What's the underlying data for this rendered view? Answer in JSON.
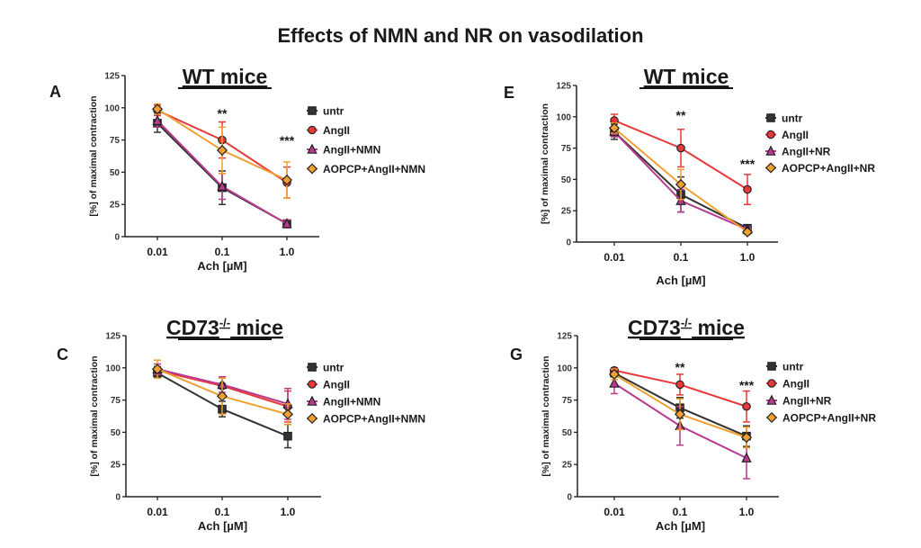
{
  "title": "Effects of NMN and NR on vasodilation",
  "colors": {
    "untr": "#333333",
    "AngII": "#e8393a",
    "NMN": "#b83b8f",
    "AOPCP": "#f0a030"
  },
  "chart_data": [
    {
      "type": "line",
      "panel": "A",
      "title": "WT mice",
      "title_superscript": "",
      "xlabel": "Ach [µM]",
      "ylabel": "[%] of maximal contraction",
      "categories": [
        "0.01",
        "0.1",
        "1.0"
      ],
      "ylim": [
        0,
        125
      ],
      "yticks": [
        0,
        25,
        50,
        75,
        100,
        125
      ],
      "legend": "right",
      "significance": [
        "",
        "**",
        "***"
      ],
      "series": [
        {
          "name": "untr",
          "color": "#333333",
          "marker": "square",
          "values": [
            88,
            38,
            10
          ],
          "error": [
            7,
            13,
            3
          ]
        },
        {
          "name": "AngII",
          "color": "#e8393a",
          "marker": "circle",
          "values": [
            98,
            75,
            42
          ],
          "error": [
            4,
            14,
            12
          ]
        },
        {
          "name": "AngII+NMN",
          "color": "#b83b8f",
          "marker": "triangle",
          "values": [
            90,
            39,
            10
          ],
          "error": [
            5,
            10,
            3
          ]
        },
        {
          "name": "AOPCP+AngII+NMN",
          "color": "#f0a030",
          "marker": "diamond",
          "values": [
            99,
            67,
            44
          ],
          "error": [
            4,
            18,
            14
          ]
        }
      ]
    },
    {
      "type": "line",
      "panel": "E",
      "title": "WT mice",
      "title_superscript": "",
      "xlabel": "Ach [µM]",
      "ylabel": "[%] of maximal contraction",
      "categories": [
        "0.01",
        "0.1",
        "1.0"
      ],
      "ylim": [
        0,
        125
      ],
      "yticks": [
        0,
        25,
        50,
        75,
        100,
        125
      ],
      "legend": "right",
      "significance": [
        "",
        "**",
        "***"
      ],
      "series": [
        {
          "name": "untr",
          "color": "#333333",
          "marker": "square",
          "values": [
            88,
            38,
            11
          ],
          "error": [
            6,
            14,
            2
          ]
        },
        {
          "name": "AngII",
          "color": "#e8393a",
          "marker": "circle",
          "values": [
            97,
            75,
            42
          ],
          "error": [
            5,
            15,
            12
          ]
        },
        {
          "name": "AngII+NR",
          "color": "#b83b8f",
          "marker": "triangle",
          "values": [
            88,
            33,
            10
          ],
          "error": [
            4,
            9,
            2
          ]
        },
        {
          "name": "AOPCP+AngII+NR",
          "color": "#f0a030",
          "marker": "diamond",
          "values": [
            91,
            46,
            8
          ],
          "error": [
            4,
            12,
            2
          ]
        }
      ]
    },
    {
      "type": "line",
      "panel": "C",
      "title": "CD73",
      "title_superscript": "-/-",
      "title_suffix": " mice",
      "xlabel": "Ach [µM]",
      "ylabel": "[%] of maximal contraction",
      "categories": [
        "0.01",
        "0.1",
        "1.0"
      ],
      "ylim": [
        0,
        125
      ],
      "yticks": [
        0,
        25,
        50,
        75,
        100,
        125
      ],
      "legend": "right",
      "significance": [
        "",
        "",
        ""
      ],
      "series": [
        {
          "name": "untr",
          "color": "#333333",
          "marker": "square",
          "values": [
            96,
            68,
            47
          ],
          "error": [
            3,
            6,
            9
          ]
        },
        {
          "name": "AngII",
          "color": "#e8393a",
          "marker": "circle",
          "values": [
            98,
            86,
            70
          ],
          "error": [
            3,
            7,
            12
          ]
        },
        {
          "name": "AngII+NMN",
          "color": "#b83b8f",
          "marker": "triangle",
          "values": [
            99,
            87,
            72
          ],
          "error": [
            4,
            6,
            12
          ]
        },
        {
          "name": "AOPCP+AngII+NMN",
          "color": "#f0a030",
          "marker": "diamond",
          "values": [
            99,
            78,
            64
          ],
          "error": [
            7,
            14,
            8
          ]
        }
      ]
    },
    {
      "type": "line",
      "panel": "G",
      "title": "CD73",
      "title_superscript": "-/-",
      "title_suffix": " mice",
      "xlabel": "Ach [µM]",
      "ylabel": "[%] of maximal contraction",
      "categories": [
        "0.01",
        "0.1",
        "1.0"
      ],
      "ylim": [
        0,
        125
      ],
      "yticks": [
        0,
        25,
        50,
        75,
        100,
        125
      ],
      "legend": "right",
      "significance": [
        "",
        "**",
        "***"
      ],
      "series": [
        {
          "name": "untr",
          "color": "#333333",
          "marker": "square",
          "values": [
            96,
            69,
            47
          ],
          "error": [
            3,
            8,
            8
          ]
        },
        {
          "name": "AngII",
          "color": "#e8393a",
          "marker": "circle",
          "values": [
            98,
            87,
            70
          ],
          "error": [
            2,
            8,
            12
          ]
        },
        {
          "name": "AngII+NR",
          "color": "#b83b8f",
          "marker": "triangle",
          "values": [
            88,
            55,
            30
          ],
          "error": [
            8,
            15,
            16
          ]
        },
        {
          "name": "AOPCP+AngII+NR",
          "color": "#f0a030",
          "marker": "diamond",
          "values": [
            95,
            64,
            46
          ],
          "error": [
            4,
            12,
            8
          ]
        }
      ]
    }
  ]
}
